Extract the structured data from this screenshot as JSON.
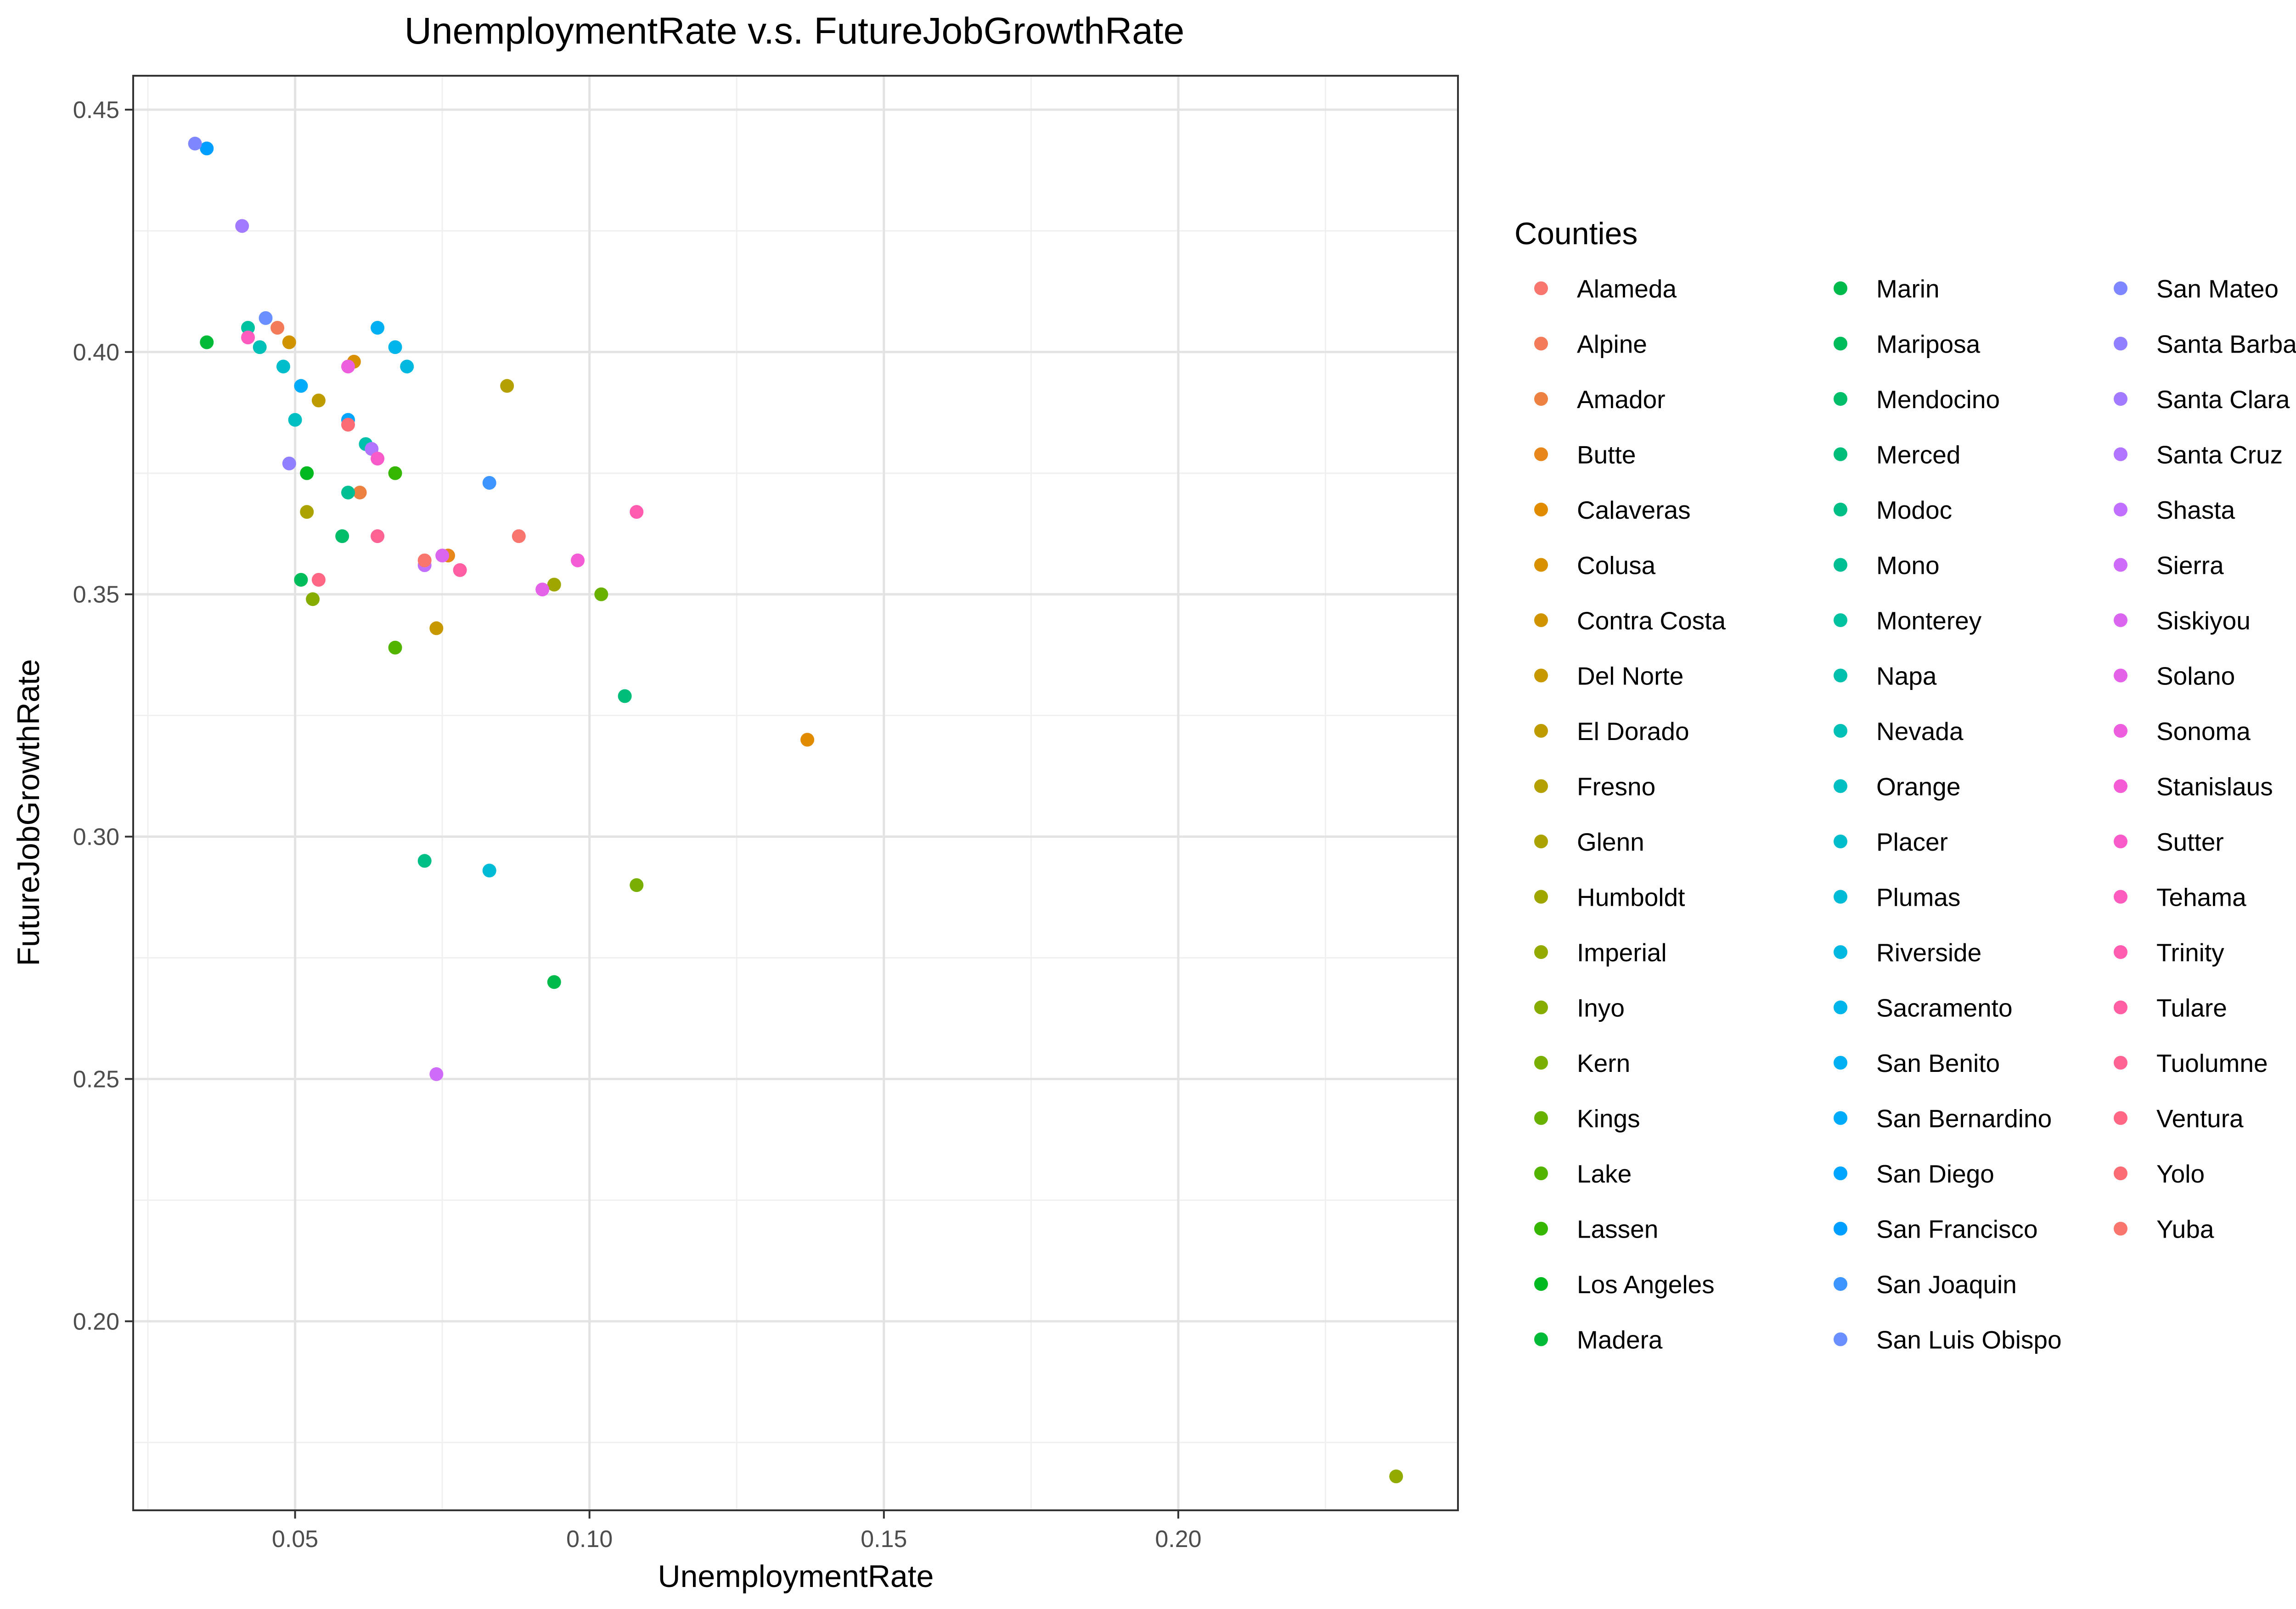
{
  "chart_data": {
    "type": "scatter",
    "title": "UnemploymentRate v.s. FutureJobGrowthRate",
    "xlabel": "UnemploymentRate",
    "ylabel": "FutureJobGrowthRate",
    "xlim": [
      0.0225,
      0.2475
    ],
    "ylim": [
      0.161,
      0.457
    ],
    "x_ticks": [
      "0.05",
      "0.10",
      "0.15",
      "0.20"
    ],
    "y_ticks": [
      "0.20",
      "0.25",
      "0.30",
      "0.35",
      "0.40",
      "0.45"
    ],
    "grid": true,
    "legend": {
      "title": "Counties",
      "position": "right",
      "columns": 3
    },
    "series": [
      {
        "name": "Alameda",
        "color": "#F8766D",
        "x": [
          0.088
        ],
        "y": [
          0.362
        ]
      },
      {
        "name": "Alpine",
        "color": "#F37B59",
        "x": [
          0.047
        ],
        "y": [
          0.405
        ]
      },
      {
        "name": "Amador",
        "color": "#ED8141",
        "x": [
          0.061
        ],
        "y": [
          0.371
        ]
      },
      {
        "name": "Butte",
        "color": "#E7861B",
        "x": [
          0.076
        ],
        "y": [
          0.358
        ]
      },
      {
        "name": "Calaveras",
        "color": "#E08B00",
        "x": [
          0.137
        ],
        "y": [
          0.32
        ]
      },
      {
        "name": "Colusa",
        "color": "#D89000",
        "x": [
          0.06
        ],
        "y": [
          0.398
        ]
      },
      {
        "name": "Contra Costa",
        "color": "#D09400",
        "x": [
          0.049
        ],
        "y": [
          0.402
        ]
      },
      {
        "name": "Del Norte",
        "color": "#C79800",
        "x": [
          0.074
        ],
        "y": [
          0.343
        ]
      },
      {
        "name": "El Dorado",
        "color": "#BE9C00",
        "x": [
          0.054
        ],
        "y": [
          0.39
        ]
      },
      {
        "name": "Fresno",
        "color": "#B4A000",
        "x": [
          0.086
        ],
        "y": [
          0.393
        ]
      },
      {
        "name": "Glenn",
        "color": "#AAA300",
        "x": [
          0.052
        ],
        "y": [
          0.367
        ]
      },
      {
        "name": "Humboldt",
        "color": "#9FA600",
        "x": [
          0.094
        ],
        "y": [
          0.352
        ]
      },
      {
        "name": "Imperial",
        "color": "#93AA00",
        "x": [
          0.237
        ],
        "y": [
          0.168
        ]
      },
      {
        "name": "Inyo",
        "color": "#86AC00",
        "x": [
          0.053
        ],
        "y": [
          0.349
        ]
      },
      {
        "name": "Kern",
        "color": "#78AF00",
        "x": [
          0.108
        ],
        "y": [
          0.29
        ]
      },
      {
        "name": "Kings",
        "color": "#68B100",
        "x": [
          0.102
        ],
        "y": [
          0.35
        ]
      },
      {
        "name": "Lake",
        "color": "#53B400",
        "x": [
          0.067
        ],
        "y": [
          0.339
        ]
      },
      {
        "name": "Lassen",
        "color": "#35B600",
        "x": [
          0.067
        ],
        "y": [
          0.375
        ]
      },
      {
        "name": "Los Angeles",
        "color": "#00B81F",
        "x": [
          0.052
        ],
        "y": [
          0.375
        ]
      },
      {
        "name": "Madera",
        "color": "#00BA38",
        "x": [
          0.035
        ],
        "y": [
          0.402
        ]
      },
      {
        "name": "Marin",
        "color": "#00BB4B",
        "x": [
          0.094
        ],
        "y": [
          0.27
        ]
      },
      {
        "name": "Mariposa",
        "color": "#00BC5B",
        "x": [
          0.051
        ],
        "y": [
          0.353
        ]
      },
      {
        "name": "Mendocino",
        "color": "#00BD6A",
        "x": [
          0.058
        ],
        "y": [
          0.362
        ]
      },
      {
        "name": "Merced",
        "color": "#00BE79",
        "x": [
          0.106
        ],
        "y": [
          0.329
        ]
      },
      {
        "name": "Modoc",
        "color": "#00BF86",
        "x": [
          0.072
        ],
        "y": [
          0.295
        ]
      },
      {
        "name": "Mono",
        "color": "#00C093",
        "x": [
          0.059
        ],
        "y": [
          0.371
        ]
      },
      {
        "name": "Monterey",
        "color": "#00C1A0",
        "x": [
          0.042
        ],
        "y": [
          0.405
        ]
      },
      {
        "name": "Napa",
        "color": "#00C0AB",
        "x": [
          0.062
        ],
        "y": [
          0.381
        ]
      },
      {
        "name": "Nevada",
        "color": "#00C0B7",
        "x": [
          0.044
        ],
        "y": [
          0.401
        ]
      },
      {
        "name": "Orange",
        "color": "#00BFC2",
        "x": [
          0.05
        ],
        "y": [
          0.386
        ]
      },
      {
        "name": "Placer",
        "color": "#00BDCC",
        "x": [
          0.048
        ],
        "y": [
          0.397
        ]
      },
      {
        "name": "Plumas",
        "color": "#00BBD6",
        "x": [
          0.083
        ],
        "y": [
          0.293
        ]
      },
      {
        "name": "Riverside",
        "color": "#00B8E0",
        "x": [
          0.069
        ],
        "y": [
          0.397
        ]
      },
      {
        "name": "Sacramento",
        "color": "#00B5E9",
        "x": [
          0.067
        ],
        "y": [
          0.401
        ]
      },
      {
        "name": "San Benito",
        "color": "#00B0F1",
        "x": [
          0.064
        ],
        "y": [
          0.405
        ]
      },
      {
        "name": "San Bernardino",
        "color": "#00ABF9",
        "x": [
          0.051
        ],
        "y": [
          0.393
        ]
      },
      {
        "name": "San Diego",
        "color": "#00A5FF",
        "x": [
          0.059
        ],
        "y": [
          0.386
        ]
      },
      {
        "name": "San Francisco",
        "color": "#009EFF",
        "x": [
          0.035
        ],
        "y": [
          0.442
        ]
      },
      {
        "name": "San Joaquin",
        "color": "#3D96FF",
        "x": [
          0.083
        ],
        "y": [
          0.373
        ]
      },
      {
        "name": "San Luis Obispo",
        "color": "#6A8FFF",
        "x": [
          0.045
        ],
        "y": [
          0.407
        ]
      },
      {
        "name": "San Mateo",
        "color": "#7E87FF",
        "x": [
          0.033
        ],
        "y": [
          0.443
        ]
      },
      {
        "name": "Santa Barbara",
        "color": "#9080FF",
        "x": [
          0.049
        ],
        "y": [
          0.377
        ]
      },
      {
        "name": "Santa Clara",
        "color": "#A17AFF",
        "x": [
          0.041
        ],
        "y": [
          0.426
        ]
      },
      {
        "name": "Santa Cruz",
        "color": "#B174FF",
        "x": [
          0.063
        ],
        "y": [
          0.38
        ]
      },
      {
        "name": "Shasta",
        "color": "#C06FFF",
        "x": [
          0.072
        ],
        "y": [
          0.356
        ]
      },
      {
        "name": "Sierra",
        "color": "#CE6BF8",
        "x": [
          0.074
        ],
        "y": [
          0.251
        ]
      },
      {
        "name": "Siskiyou",
        "color": "#DA66F0",
        "x": [
          0.075
        ],
        "y": [
          0.358
        ]
      },
      {
        "name": "Solano",
        "color": "#E462E8",
        "x": [
          0.092
        ],
        "y": [
          0.351
        ]
      },
      {
        "name": "Sonoma",
        "color": "#ED5EDE",
        "x": [
          0.059
        ],
        "y": [
          0.397
        ]
      },
      {
        "name": "Stanislaus",
        "color": "#F35CD4",
        "x": [
          0.098
        ],
        "y": [
          0.357
        ]
      },
      {
        "name": "Sutter",
        "color": "#F85BC9",
        "x": [
          0.064
        ],
        "y": [
          0.378
        ]
      },
      {
        "name": "Tehama",
        "color": "#FB5CBD",
        "x": [
          0.042
        ],
        "y": [
          0.403
        ]
      },
      {
        "name": "Trinity",
        "color": "#FF5CB0",
        "x": [
          0.108
        ],
        "y": [
          0.367
        ]
      },
      {
        "name": "Tulare",
        "color": "#FF5FA2",
        "x": [
          0.078
        ],
        "y": [
          0.355
        ]
      },
      {
        "name": "Tuolumne",
        "color": "#FF6393",
        "x": [
          0.064
        ],
        "y": [
          0.362
        ]
      },
      {
        "name": "Ventura",
        "color": "#FF6784",
        "x": [
          0.054
        ],
        "y": [
          0.353
        ]
      },
      {
        "name": "Yolo",
        "color": "#FC6C74",
        "x": [
          0.059
        ],
        "y": [
          0.385
        ]
      },
      {
        "name": "Yuba",
        "color": "#F8766D",
        "x": [
          0.072
        ],
        "y": [
          0.357
        ]
      }
    ]
  }
}
